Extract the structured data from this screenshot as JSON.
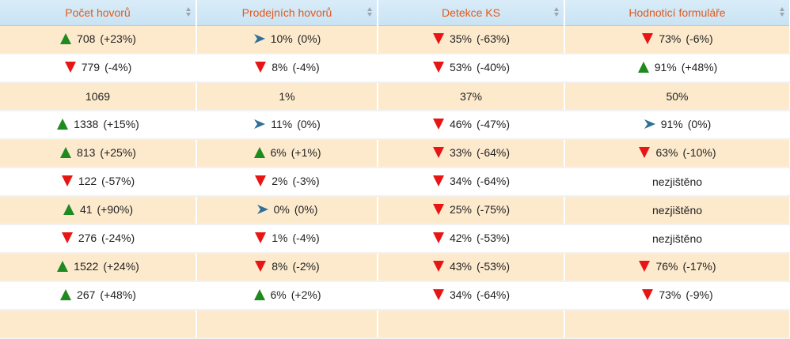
{
  "columns": [
    "Počet hovorů",
    "Prodejních hovorů",
    "Detekce KS",
    "Hodnoticí formuláře"
  ],
  "colors": {
    "up": "#1f8a1f",
    "down": "#e81515",
    "flat": "#2f6f9a",
    "header_text": "#e05a1e"
  },
  "rows": [
    [
      {
        "icon": "up",
        "value": "708",
        "change": "(+23%)"
      },
      {
        "icon": "flat",
        "value": "10%",
        "change": "(0%)"
      },
      {
        "icon": "down",
        "value": "35%",
        "change": "(-63%)"
      },
      {
        "icon": "down",
        "value": "73%",
        "change": "(-6%)"
      }
    ],
    [
      {
        "icon": "down",
        "value": "779",
        "change": "(-4%)"
      },
      {
        "icon": "down",
        "value": "8%",
        "change": "(-4%)"
      },
      {
        "icon": "down",
        "value": "53%",
        "change": "(-40%)"
      },
      {
        "icon": "up",
        "value": "91%",
        "change": "(+48%)"
      }
    ],
    [
      {
        "icon": "",
        "value": "1069",
        "change": ""
      },
      {
        "icon": "",
        "value": "1%",
        "change": ""
      },
      {
        "icon": "",
        "value": "37%",
        "change": ""
      },
      {
        "icon": "",
        "value": "50%",
        "change": ""
      }
    ],
    [
      {
        "icon": "up",
        "value": "1338",
        "change": "(+15%)"
      },
      {
        "icon": "flat",
        "value": "11%",
        "change": "(0%)"
      },
      {
        "icon": "down",
        "value": "46%",
        "change": "(-47%)"
      },
      {
        "icon": "flat",
        "value": "91%",
        "change": "(0%)"
      }
    ],
    [
      {
        "icon": "up",
        "value": "813",
        "change": "(+25%)"
      },
      {
        "icon": "up",
        "value": "6%",
        "change": "(+1%)"
      },
      {
        "icon": "down",
        "value": "33%",
        "change": "(-64%)"
      },
      {
        "icon": "down",
        "value": "63%",
        "change": "(-10%)"
      }
    ],
    [
      {
        "icon": "down",
        "value": "122",
        "change": "(-57%)"
      },
      {
        "icon": "down",
        "value": "2%",
        "change": "(-3%)"
      },
      {
        "icon": "down",
        "value": "34%",
        "change": "(-64%)"
      },
      {
        "icon": "",
        "value": "nezjištěno",
        "change": ""
      }
    ],
    [
      {
        "icon": "up",
        "value": "41",
        "change": "(+90%)"
      },
      {
        "icon": "flat",
        "value": "0%",
        "change": "(0%)"
      },
      {
        "icon": "down",
        "value": "25%",
        "change": "(-75%)"
      },
      {
        "icon": "",
        "value": "nezjištěno",
        "change": ""
      }
    ],
    [
      {
        "icon": "down",
        "value": "276",
        "change": "(-24%)"
      },
      {
        "icon": "down",
        "value": "1%",
        "change": "(-4%)"
      },
      {
        "icon": "down",
        "value": "42%",
        "change": "(-53%)"
      },
      {
        "icon": "",
        "value": "nezjištěno",
        "change": ""
      }
    ],
    [
      {
        "icon": "up",
        "value": "1522",
        "change": "(+24%)"
      },
      {
        "icon": "down",
        "value": "8%",
        "change": "(-2%)"
      },
      {
        "icon": "down",
        "value": "43%",
        "change": "(-53%)"
      },
      {
        "icon": "down",
        "value": "76%",
        "change": "(-17%)"
      }
    ],
    [
      {
        "icon": "up",
        "value": "267",
        "change": "(+48%)"
      },
      {
        "icon": "up",
        "value": "6%",
        "change": "(+2%)"
      },
      {
        "icon": "down",
        "value": "34%",
        "change": "(-64%)"
      },
      {
        "icon": "down",
        "value": "73%",
        "change": "(-9%)"
      }
    ],
    [
      {
        "icon": "",
        "value": "",
        "change": ""
      },
      {
        "icon": "",
        "value": "",
        "change": ""
      },
      {
        "icon": "",
        "value": "",
        "change": ""
      },
      {
        "icon": "",
        "value": "",
        "change": ""
      }
    ]
  ]
}
